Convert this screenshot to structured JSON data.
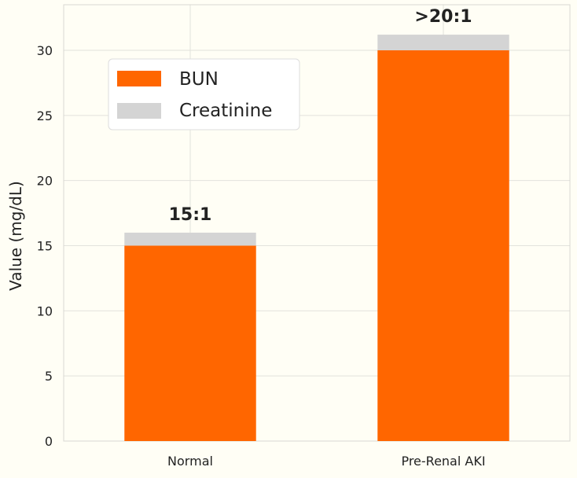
{
  "chart_data": {
    "type": "bar",
    "stacked": true,
    "categories": [
      "Normal",
      "Pre-Renal AKI"
    ],
    "series": [
      {
        "name": "BUN",
        "values": [
          15,
          30
        ],
        "color": "#ff6600"
      },
      {
        "name": "Creatinine",
        "values": [
          1,
          1.2
        ],
        "color": "#d4d4d4"
      }
    ],
    "annotations": [
      "15:1",
      ">20:1"
    ],
    "ylabel": "Value (mg/dL)",
    "xlabel": "",
    "ylim": [
      0,
      33.5
    ],
    "yticks": [
      0,
      5,
      10,
      15,
      20,
      25,
      30
    ],
    "grid": true,
    "legend_position": "upper-left",
    "background_color": "#fffef5",
    "grid_color": "#e2e2dc"
  }
}
